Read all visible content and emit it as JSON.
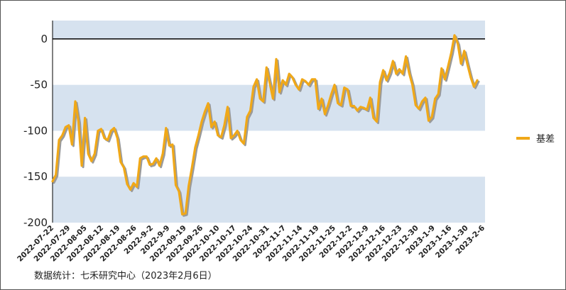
{
  "chart_data": {
    "type": "line",
    "ylim": [
      -200,
      20
    ],
    "yticks": [
      0,
      -50,
      -100,
      -150,
      -200
    ],
    "grid_bands": true,
    "legend_position": "right",
    "colors": {
      "line": "#F0A818",
      "shadow": "#9A9A9A",
      "band": "#D6E2EF",
      "zero_line": "#000000"
    },
    "x_tick_labels": [
      "2022-07-22",
      "2022-07-29",
      "2022-08-05",
      "2022-08-12",
      "2022-08-19",
      "2022-08-26",
      "2022-9-2",
      "2022-9-9",
      "2022-09-19",
      "2022-09-26",
      "2022-10-10",
      "2022-10-17",
      "2022-10-24",
      "2022-10-31",
      "2022-11-7",
      "2022-11-14",
      "2022-11-19",
      "2022-11-25",
      "2022-12-2",
      "2022-12-9",
      "2022-12-16",
      "2022-12-23",
      "2022-12-30",
      "2023-1-9",
      "2023-1-16",
      "2023-1-30",
      "2023-2-6"
    ],
    "series": [
      {
        "name": "基差",
        "values": [
          -155,
          -148,
          -110,
          -105,
          -96,
          -94,
          -115,
          -68,
          -90,
          -138,
          -86,
          -125,
          -133,
          -125,
          -100,
          -98,
          -108,
          -110,
          -100,
          -97,
          -108,
          -134,
          -140,
          -158,
          -164,
          -157,
          -161,
          -130,
          -128,
          -128,
          -137,
          -136,
          -130,
          -138,
          -125,
          -97,
          -116,
          -115,
          -159,
          -166,
          -191,
          -190,
          -160,
          -140,
          -118,
          -105,
          -90,
          -79,
          -70,
          -96,
          -90,
          -105,
          -107,
          -94,
          -74,
          -108,
          -105,
          -100,
          -110,
          -114,
          -85,
          -78,
          -52,
          -44,
          -65,
          -68,
          -31,
          -48,
          -65,
          -22,
          -58,
          -45,
          -50,
          -38,
          -42,
          -50,
          -55,
          -44,
          -46,
          -50,
          -44,
          -44,
          -76,
          -65,
          -82,
          -72,
          -60,
          -50,
          -70,
          -72,
          -53,
          -55,
          -73,
          -73,
          -78,
          -74,
          -75,
          -77,
          -64,
          -86,
          -90,
          -47,
          -34,
          -45,
          -37,
          -24,
          -38,
          -33,
          -38,
          -19,
          -37,
          -50,
          -72,
          -76,
          -68,
          -64,
          -89,
          -85,
          -65,
          -60,
          -32,
          -44,
          -30,
          -15,
          4,
          -5,
          -27,
          -13,
          -28,
          -42,
          -52,
          -45
        ]
      }
    ]
  },
  "source_text": "数据统计：七禾研究中心（2023年2月6日）"
}
